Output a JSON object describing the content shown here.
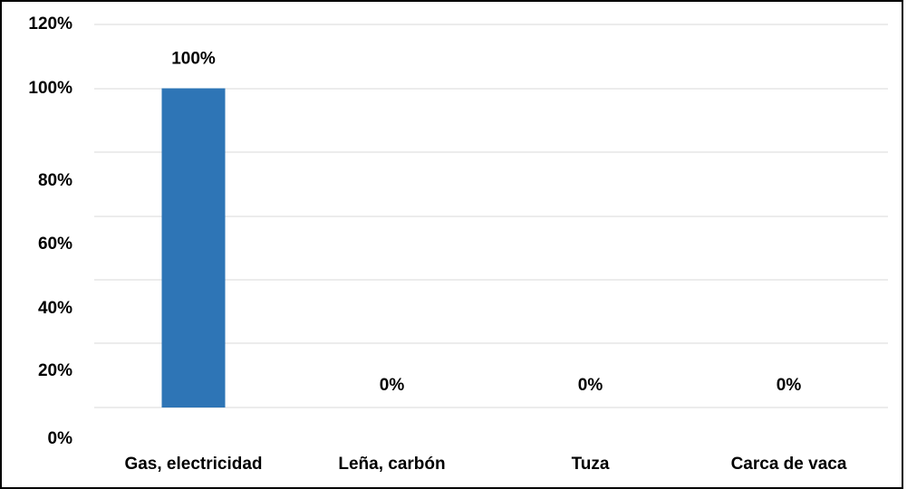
{
  "chart_data": {
    "type": "bar",
    "title": "",
    "xlabel": "",
    "ylabel": "",
    "categories": [
      "Gas, electricidad",
      "Leña, carbón",
      "Tuza",
      "Carca de vaca"
    ],
    "values": [
      1.0,
      0.0,
      0.0,
      0.0
    ],
    "data_labels": [
      "100%",
      "0%",
      "0%",
      "0%"
    ],
    "y_ticks": [
      {
        "value": 0.0,
        "label": "0%"
      },
      {
        "value": 0.2,
        "label": "20%"
      },
      {
        "value": 0.4,
        "label": "40%"
      },
      {
        "value": 0.6,
        "label": "60%"
      },
      {
        "value": 0.8,
        "label": "80%"
      },
      {
        "value": 1.0,
        "label": "100%"
      },
      {
        "value": 1.2,
        "label": "120%"
      }
    ],
    "ylim": [
      0,
      1.2
    ],
    "grid": true,
    "legend": "none",
    "bar_color": "#2E75B6",
    "gridline_color": "#D9D9D9"
  }
}
